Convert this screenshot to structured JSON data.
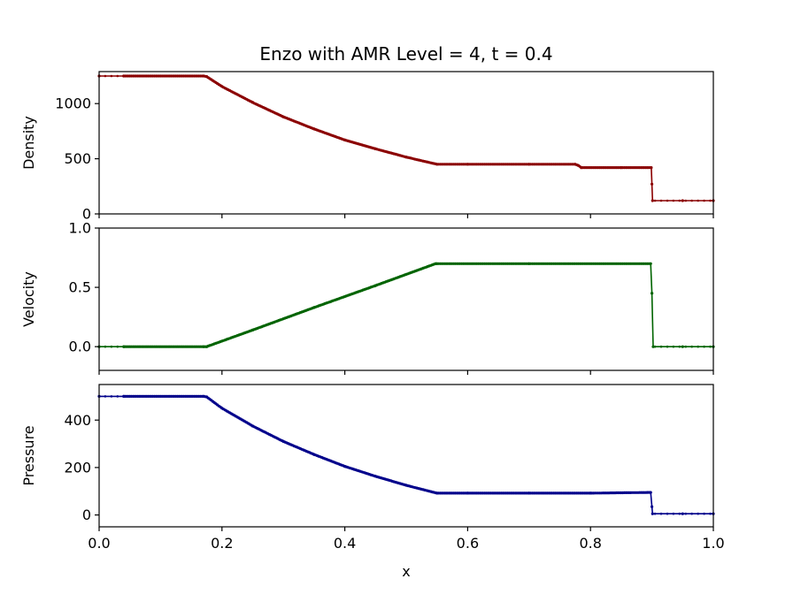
{
  "chart_data": {
    "type": "line",
    "title": "Enzo with AMR Level = 4, t = 0.4",
    "xlabel": "x",
    "xlim": [
      0.0,
      1.0
    ],
    "xticks": [
      0.0,
      0.2,
      0.4,
      0.6,
      0.8,
      1.0
    ],
    "xtick_labels": [
      "0.0",
      "0.2",
      "0.4",
      "0.6",
      "0.8",
      "1.0"
    ],
    "shared_x": true,
    "panels": [
      {
        "id": "density",
        "ylabel": "Density",
        "ylim": [
          0,
          1290
        ],
        "yticks": [
          0,
          500,
          1000
        ],
        "ytick_labels": [
          "0",
          "500",
          "1000"
        ],
        "color": "#8b0000",
        "x": [
          0.0,
          0.04,
          0.17,
          0.175,
          0.2,
          0.25,
          0.3,
          0.35,
          0.4,
          0.45,
          0.5,
          0.55,
          0.6,
          0.7,
          0.775,
          0.78,
          0.785,
          0.85,
          0.899,
          0.901,
          0.95,
          1.0
        ],
        "y": [
          1250,
          1250,
          1250,
          1245,
          1155,
          1010,
          880,
          770,
          670,
          590,
          515,
          450,
          450,
          450,
          450,
          440,
          420,
          420,
          420,
          120,
          120,
          120
        ]
      },
      {
        "id": "velocity",
        "ylabel": "Velocity",
        "ylim": [
          -0.2,
          1.0
        ],
        "yticks": [
          0.0,
          0.5,
          1.0
        ],
        "ytick_labels": [
          "0.0",
          "0.5",
          "1.0"
        ],
        "color": "#006400",
        "x": [
          0.0,
          0.04,
          0.17,
          0.175,
          0.25,
          0.35,
          0.45,
          0.548,
          0.55,
          0.7,
          0.898,
          0.9,
          0.902,
          0.95,
          1.0
        ],
        "y": [
          0.0,
          0.0,
          0.0,
          0.0,
          0.14,
          0.33,
          0.515,
          0.7,
          0.7,
          0.7,
          0.7,
          0.45,
          0.0,
          0.0,
          0.0
        ]
      },
      {
        "id": "pressure",
        "ylabel": "Pressure",
        "ylim": [
          -50,
          550
        ],
        "yticks": [
          0,
          200,
          400
        ],
        "ytick_labels": [
          "0",
          "200",
          "400"
        ],
        "color": "#00008b",
        "x": [
          0.0,
          0.04,
          0.17,
          0.175,
          0.2,
          0.25,
          0.3,
          0.35,
          0.4,
          0.45,
          0.5,
          0.55,
          0.6,
          0.7,
          0.8,
          0.898,
          0.901,
          0.95,
          1.0
        ],
        "y": [
          500,
          500,
          500,
          498,
          450,
          375,
          310,
          255,
          205,
          163,
          125,
          92,
          92,
          92,
          92,
          95,
          5,
          5,
          5
        ]
      }
    ]
  }
}
